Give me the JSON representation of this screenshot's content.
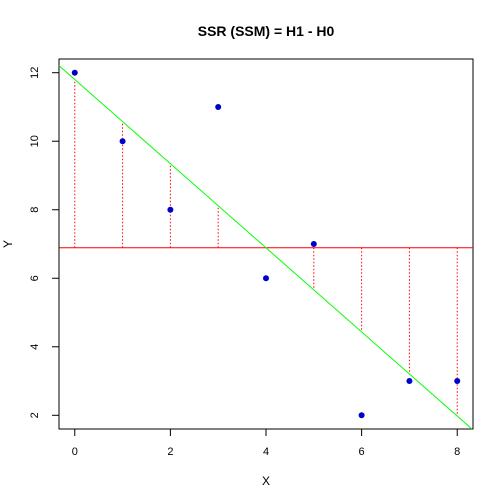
{
  "chart_data": {
    "type": "scatter",
    "title": "SSR (SSM) = H1 - H0",
    "xlabel": "X",
    "ylabel": "Y",
    "xlim": [
      -0.33,
      8.33
    ],
    "ylim": [
      1.6,
      12.4
    ],
    "x_ticks": [
      "0",
      "2",
      "4",
      "6",
      "8"
    ],
    "y_ticks": [
      "2",
      "4",
      "6",
      "8",
      "10",
      "12"
    ],
    "grid": false,
    "points": {
      "x": [
        0,
        1,
        2,
        3,
        4,
        5,
        6,
        7,
        8
      ],
      "y": [
        12,
        10,
        8,
        11,
        6,
        7,
        2,
        3,
        3
      ]
    },
    "mean_line": {
      "y": 6.89
    },
    "regression_line": {
      "intercept": 11.8,
      "slope": -1.2278
    },
    "colors": {
      "points": "#0000cc",
      "mean_line": "#ff0000",
      "regression_line": "#00ff00",
      "residual_segments": "#ff0000"
    }
  }
}
